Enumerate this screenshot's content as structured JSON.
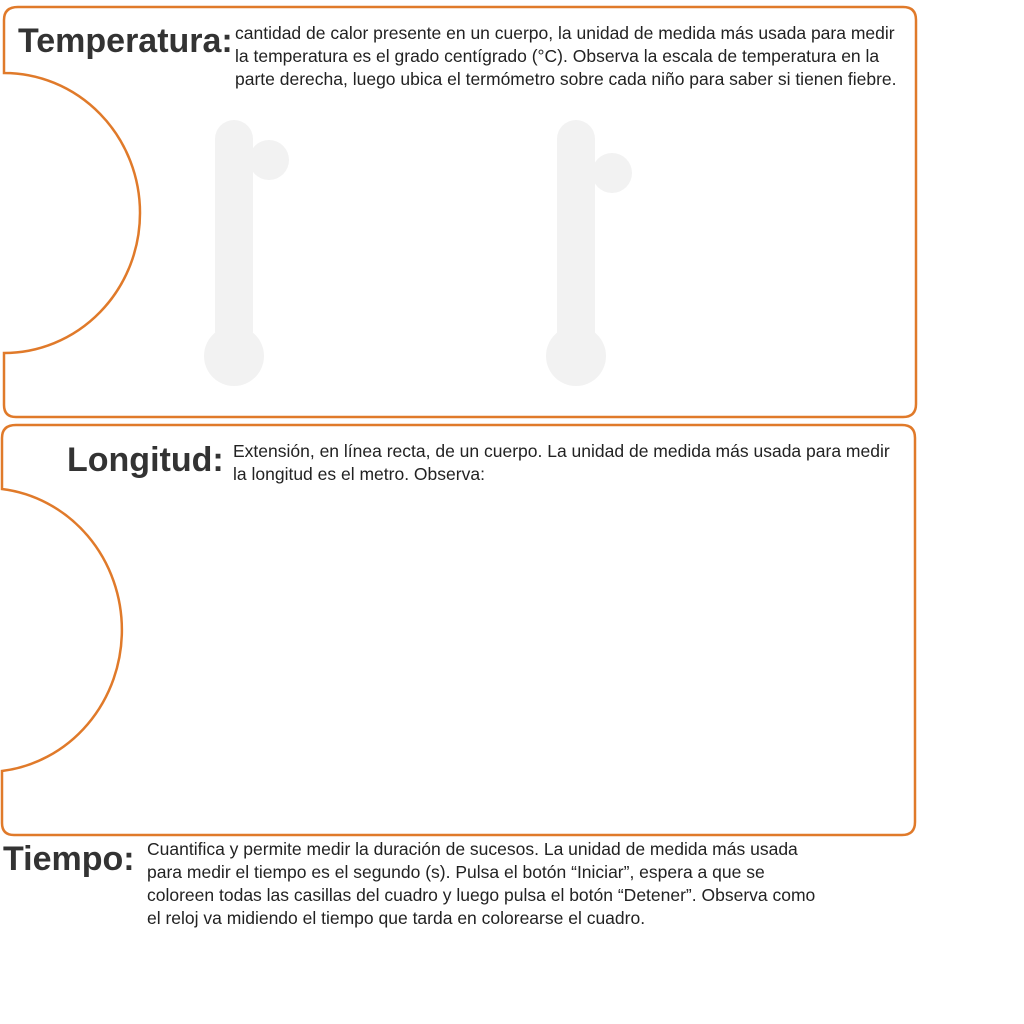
{
  "colors": {
    "frame_border": "#e07a2a",
    "thermometer": "#f2f2f2",
    "heading_text": "#333333",
    "body_text": "#222222"
  },
  "temperatura": {
    "title": "Temperatura:",
    "description": "cantidad de calor presente en un cuerpo, la unidad de medida más usada para medir la temperatura es el grado centígrado (°C). Observa la escala de temperatura en la parte derecha, luego ubica el termómetro sobre cada niño para saber si tienen fiebre.",
    "thermometers": [
      {
        "icon": "thermometer-icon"
      },
      {
        "icon": "thermometer-icon"
      }
    ]
  },
  "longitud": {
    "title": "Longitud:",
    "description": "Extensión, en línea recta, de un cuerpo. La unidad de medida más usada para medir la longitud es el metro. Observa:"
  },
  "tiempo": {
    "title": "Tiempo:",
    "description": "Cuantifica y permite medir la duración de sucesos. La unidad de medida más usada para medir el tiempo es el segundo (s). Pulsa el botón “Iniciar”, espera a que se coloreen todas las casillas del cuadro y luego pulsa el botón “Detener”. Observa como el reloj va midiendo el tiempo que tarda en colorearse el cuadro."
  }
}
